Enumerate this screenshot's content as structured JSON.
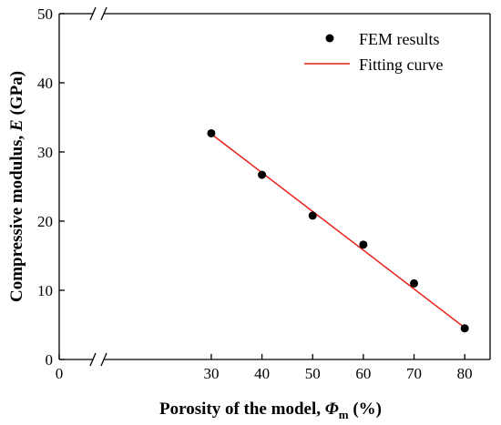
{
  "chart_data": {
    "type": "scatter",
    "xlabel_parts": {
      "main": "Porosity of the model, ",
      "symbol": "Φ",
      "subscript": "m",
      "unit": " (%)"
    },
    "ylabel_parts": {
      "main": "Compressive modulus, ",
      "symbol": "E",
      "unit": " (GPa)"
    },
    "xlim": [
      0,
      85
    ],
    "ylim": [
      0,
      50
    ],
    "x_ticks": [
      0,
      30,
      40,
      50,
      60,
      70,
      80
    ],
    "y_ticks": [
      0,
      10,
      20,
      30,
      40,
      50
    ],
    "x_axis_break": "between 0 and 30",
    "grid": false,
    "legend_position": "top-right",
    "series": [
      {
        "name": "FEM results",
        "kind": "scatter",
        "color": "#000000",
        "x": [
          30,
          40,
          50,
          60,
          70,
          80
        ],
        "y": [
          32.7,
          26.7,
          20.8,
          16.6,
          11.0,
          4.5
        ]
      },
      {
        "name": "Fitting curve",
        "kind": "line",
        "color": "#e8201a",
        "x": [
          30,
          80
        ],
        "y": [
          32.6,
          4.6
        ]
      }
    ]
  }
}
